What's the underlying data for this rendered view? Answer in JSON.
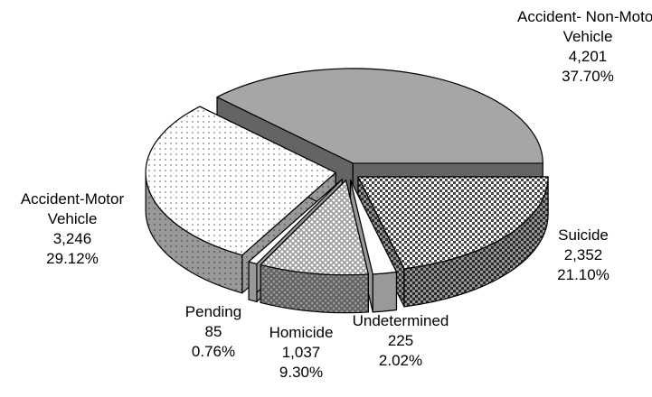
{
  "chart_data": {
    "type": "pie3d",
    "categories": [
      "Accident- Non-Motor Vehicle",
      "Suicide",
      "Undetermined",
      "Homicide",
      "Pending",
      "Accident-Motor Vehicle"
    ],
    "values": [
      4201,
      2352,
      225,
      1037,
      85,
      3246
    ],
    "value_labels": [
      "4,201",
      "2,352",
      "225",
      "1,037",
      "85",
      "3,246"
    ],
    "percent_labels": [
      "37.70%",
      "21.10%",
      "2.02%",
      "9.30%",
      "0.76%",
      "29.12%"
    ],
    "colors": [
      "#a6a6a6",
      "#444444",
      "#ffffff",
      "#9a9a9a",
      "#ffffff",
      "#ffffff"
    ],
    "patterns": [
      "solid",
      "checker",
      "solid",
      "crosshatch",
      "solid",
      "dots"
    ]
  }
}
